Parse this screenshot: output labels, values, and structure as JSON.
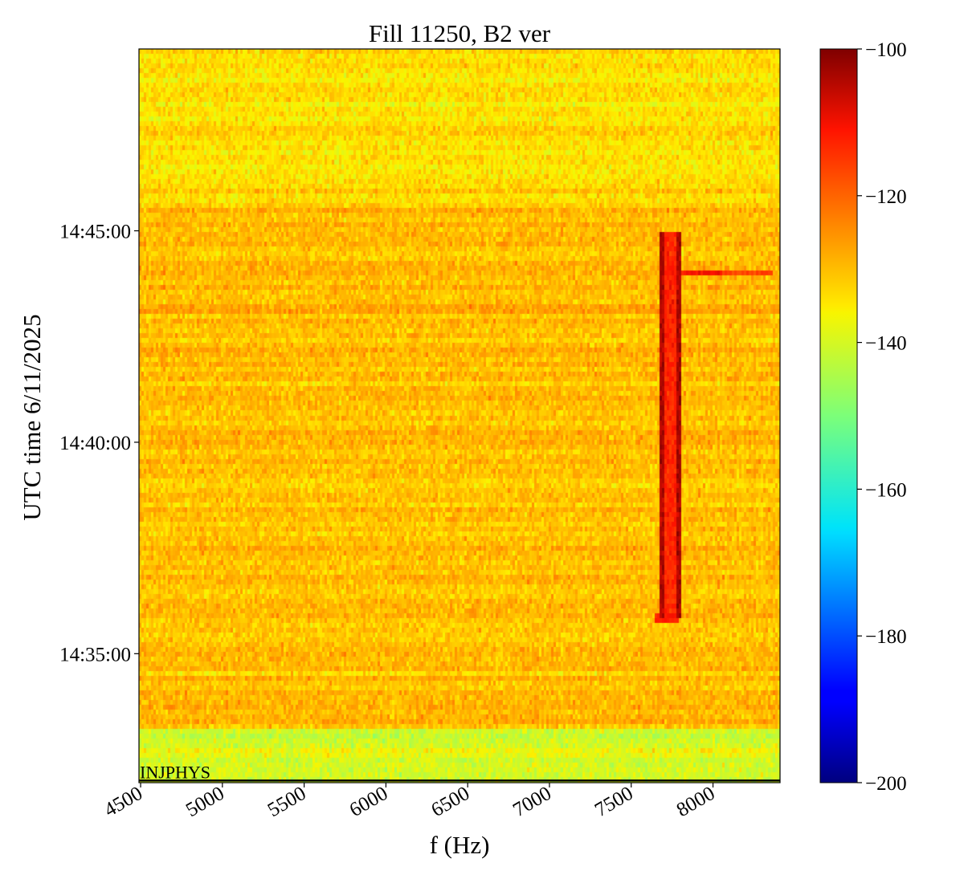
{
  "chart_data": {
    "type": "heatmap",
    "title": "Fill 11250, B2 ver",
    "xlabel": "f (Hz)",
    "ylabel": "UTC time 6/11/2025",
    "xlim": [
      4490,
      8410
    ],
    "x_ticks": [
      4500,
      5000,
      5500,
      6000,
      6500,
      7000,
      7500,
      8000
    ],
    "x_tick_labels": [
      "4500",
      "5000",
      "5500",
      "6000",
      "6500",
      "7000",
      "7500",
      "8000"
    ],
    "ylim_minutes_after_14_00": [
      31.95,
      49.3
    ],
    "y_ticks": [
      35,
      40,
      45
    ],
    "y_tick_labels": [
      "14:35:00",
      "14:40:00",
      "14:45:00"
    ],
    "colorbar": {
      "colormap": "jet",
      "range": [
        -200,
        -100
      ],
      "ticks": [
        -100,
        -120,
        -140,
        -160,
        -180,
        -200
      ],
      "tick_labels": [
        "−100",
        "−120",
        "−140",
        "−160",
        "−180",
        "−200"
      ]
    },
    "background_level": -130,
    "bottom_band_level": -140,
    "features": [
      {
        "kind": "vertical_line",
        "f_hz": 7740,
        "from_time": "14:35:50",
        "to_time": "14:45:00",
        "level": -113
      },
      {
        "kind": "horizontal_streak",
        "time": "14:44:00",
        "f_hz_range": [
          7700,
          8370
        ],
        "level": -115
      },
      {
        "kind": "horizontal_streak",
        "time": "14:35:50",
        "f_hz_range": [
          7650,
          7790
        ],
        "level": -116
      }
    ],
    "annotation": {
      "text": "INJPHYS",
      "time": "14:32:00"
    }
  }
}
